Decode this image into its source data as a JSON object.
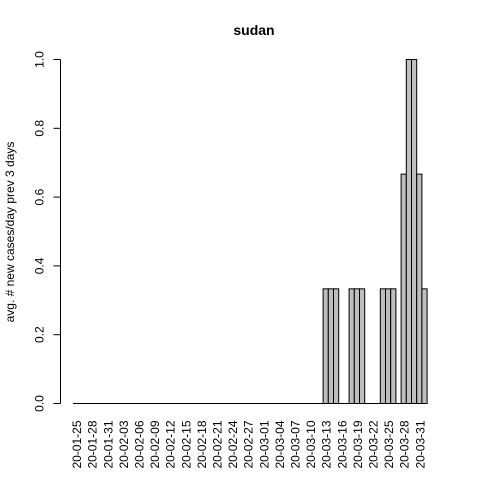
{
  "chart_data": {
    "type": "bar",
    "title": "sudan",
    "xlabel": "",
    "ylabel": "avg. # new cases/day prev  3  days",
    "ylim": [
      0,
      1
    ],
    "yticks": [
      0.0,
      0.2,
      0.4,
      0.6,
      0.8,
      1.0
    ],
    "ytick_labels": [
      "0.0",
      "0.2",
      "0.4",
      "0.6",
      "0.8",
      "1.0"
    ],
    "xtick_labels": [
      "20-01-25",
      "20-01-28",
      "20-01-31",
      "20-02-03",
      "20-02-06",
      "20-02-09",
      "20-02-12",
      "20-02-15",
      "20-02-18",
      "20-02-21",
      "20-02-24",
      "20-02-27",
      "20-03-01",
      "20-03-04",
      "20-03-07",
      "20-03-10",
      "20-03-13",
      "20-03-16",
      "20-03-19",
      "20-03-22",
      "20-03-25",
      "20-03-28",
      "20-03-31"
    ],
    "first_date": "20-01-25",
    "bar_fill": "#bebebe",
    "bar_stroke": "#000000",
    "values": [
      0,
      0,
      0,
      0,
      0,
      0,
      0,
      0,
      0,
      0,
      0,
      0,
      0,
      0,
      0,
      0,
      0,
      0,
      0,
      0,
      0,
      0,
      0,
      0,
      0,
      0,
      0,
      0,
      0,
      0,
      0,
      0,
      0,
      0,
      0,
      0,
      0,
      0,
      0,
      0,
      0,
      0,
      0,
      0,
      0,
      0,
      0,
      0,
      0.3333,
      0.3333,
      0.3333,
      0,
      0,
      0.3333,
      0.3333,
      0.3333,
      0,
      0,
      0,
      0.3333,
      0.3333,
      0.3333,
      0,
      0.6667,
      1,
      1,
      0.6667,
      0.3333
    ]
  }
}
